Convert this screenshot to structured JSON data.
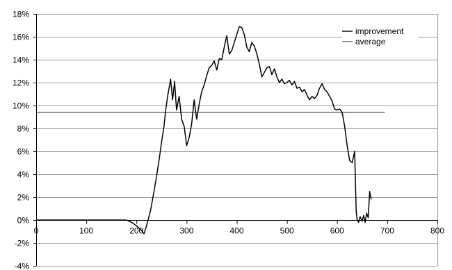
{
  "chart_data": {
    "type": "line",
    "title": "",
    "xlabel": "",
    "ylabel": "",
    "xlim": [
      0,
      800
    ],
    "ylim": [
      -4,
      18
    ],
    "x_ticks": [
      0,
      100,
      200,
      300,
      400,
      500,
      600,
      700,
      800
    ],
    "x_tick_labels": [
      "0",
      "100",
      "200",
      "300",
      "400",
      "500",
      "600",
      "700",
      "800"
    ],
    "y_ticks": [
      -4,
      -2,
      0,
      2,
      4,
      6,
      8,
      10,
      12,
      14,
      16,
      18
    ],
    "y_tick_labels": [
      "-4%",
      "-2%",
      "0%",
      "2%",
      "4%",
      "6%",
      "8%",
      "10%",
      "12%",
      "14%",
      "16%",
      "18%"
    ],
    "grid": "horizontal",
    "legend_position": "top-right",
    "series": [
      {
        "name": "improvement",
        "color": "#000000",
        "x": [
          0,
          50,
          100,
          150,
          180,
          190,
          200,
          210,
          215,
          220,
          228,
          235,
          240,
          245,
          250,
          255,
          258,
          262,
          266,
          268,
          272,
          276,
          280,
          285,
          290,
          295,
          300,
          305,
          310,
          315,
          320,
          325,
          330,
          335,
          340,
          345,
          350,
          355,
          360,
          365,
          370,
          375,
          380,
          385,
          390,
          395,
          400,
          405,
          410,
          415,
          420,
          425,
          430,
          435,
          440,
          445,
          450,
          455,
          460,
          465,
          470,
          475,
          480,
          485,
          490,
          495,
          500,
          505,
          510,
          515,
          520,
          525,
          530,
          535,
          540,
          545,
          550,
          555,
          560,
          565,
          570,
          575,
          580,
          585,
          590,
          595,
          600,
          605,
          610,
          615,
          620,
          625,
          630,
          635,
          638,
          640,
          643,
          646,
          650,
          653,
          656,
          659,
          662,
          665,
          668
        ],
        "values": [
          0,
          0,
          0,
          0,
          0,
          -0.2,
          -0.5,
          -0.9,
          -1.2,
          -0.5,
          0.8,
          2.5,
          3.8,
          5.2,
          6.8,
          8.2,
          9.5,
          10.8,
          11.8,
          12.3,
          10.5,
          12.1,
          9.6,
          10.8,
          8.8,
          8.2,
          6.5,
          7.2,
          8.4,
          10.5,
          8.8,
          10.1,
          11.2,
          11.8,
          12.6,
          13.3,
          13.5,
          13.9,
          13.1,
          14.1,
          14.0,
          15.1,
          16.1,
          14.5,
          14.8,
          15.5,
          16.2,
          16.9,
          16.8,
          16.2,
          15.1,
          14.7,
          15.5,
          15.2,
          14.5,
          13.6,
          12.5,
          12.9,
          13.3,
          13.4,
          12.7,
          13.2,
          12.5,
          12.0,
          12.3,
          11.9,
          12.0,
          12.2,
          11.8,
          12.1,
          11.5,
          11.6,
          11.2,
          11.4,
          10.9,
          10.5,
          10.8,
          10.6,
          10.9,
          11.5,
          11.9,
          11.4,
          11.2,
          10.8,
          10.4,
          9.7,
          9.6,
          9.7,
          9.4,
          8.2,
          6.5,
          5.2,
          5.0,
          6.0,
          0.8,
          0.0,
          -0.2,
          0.3,
          -0.1,
          0.4,
          -0.2,
          0.6,
          0.2,
          2.5,
          1.8
        ]
      },
      {
        "name": "average",
        "color": "#000000",
        "x": [
          0,
          695
        ],
        "values": [
          9.4,
          9.4
        ]
      }
    ]
  }
}
